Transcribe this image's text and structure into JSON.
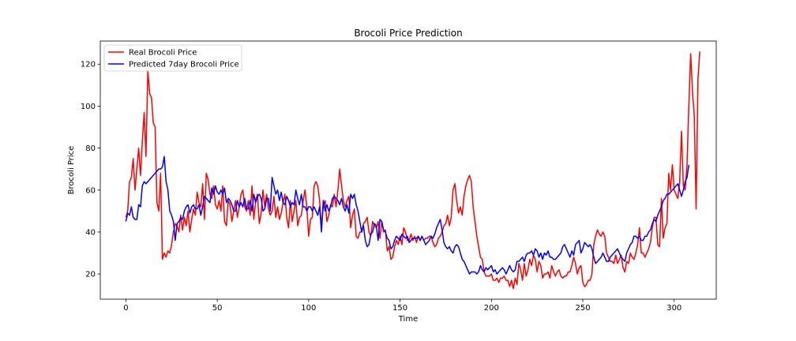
{
  "chart_data": {
    "type": "line",
    "title": "Brocoli Price Prediction",
    "xlabel": "Time",
    "ylabel": "Brocoli Price",
    "xlim": [
      -14,
      323
    ],
    "ylim": [
      8,
      131
    ],
    "x_ticks": [
      0,
      50,
      100,
      150,
      200,
      250,
      300
    ],
    "y_ticks": [
      20,
      40,
      60,
      80,
      100,
      120
    ],
    "grid": false,
    "legend_position": "upper-left",
    "series": [
      {
        "name": "Real Brocoli Price",
        "color": "#ff0000",
        "values": [
          47,
          50,
          64,
          66,
          75,
          60,
          70,
          80,
          67,
          83,
          97,
          76,
          117,
          106,
          104,
          92,
          90,
          54,
          50,
          68,
          27,
          30,
          28,
          31,
          30,
          34,
          40,
          44,
          43,
          40,
          48,
          41,
          47,
          43,
          50,
          40,
          46,
          51,
          48,
          59,
          54,
          52,
          63,
          46,
          68,
          65,
          58,
          56,
          62,
          53,
          51,
          55,
          50,
          62,
          45,
          43,
          55,
          53,
          45,
          50,
          55,
          47,
          52,
          58,
          60,
          52,
          50,
          55,
          48,
          62,
          46,
          55,
          58,
          44,
          49,
          60,
          52,
          58,
          51,
          48,
          50,
          57,
          47,
          52,
          46,
          49,
          54,
          58,
          47,
          42,
          55,
          45,
          50,
          55,
          43,
          47,
          48,
          55,
          60,
          52,
          38,
          46,
          47,
          62,
          64,
          62,
          55,
          42,
          52,
          55,
          45,
          48,
          53,
          52,
          58,
          52,
          60,
          70,
          62,
          55,
          52,
          55,
          57,
          42,
          48,
          51,
          38,
          37,
          40,
          40,
          44,
          45,
          47,
          40,
          38,
          45,
          43,
          42,
          45,
          37,
          45,
          40,
          41,
          31,
          33,
          27,
          28,
          33,
          36,
          34,
          38,
          34,
          42,
          40,
          36,
          36,
          39,
          36,
          38,
          35,
          38,
          36,
          38,
          36,
          37,
          37,
          38,
          38,
          35,
          33,
          34,
          37,
          38,
          40,
          43,
          44,
          48,
          43,
          47,
          60,
          63,
          55,
          49,
          52,
          48,
          57,
          62,
          65,
          67,
          64,
          52,
          45,
          38,
          33,
          28,
          27,
          21,
          19,
          19,
          19,
          20,
          17,
          17,
          18,
          16,
          18,
          18,
          19,
          17,
          17,
          14,
          17,
          13,
          18,
          15,
          25,
          22,
          17,
          25,
          19,
          22,
          27,
          24,
          29,
          27,
          21,
          26,
          24,
          18,
          20,
          20,
          21,
          18,
          24,
          21,
          19,
          21,
          22,
          19,
          18,
          19,
          19,
          21,
          21,
          24,
          28,
          25,
          20,
          23,
          24,
          16,
          14,
          15,
          17,
          17,
          20,
          34,
          38,
          41,
          39,
          38,
          40,
          38,
          30,
          28,
          26,
          26,
          25,
          29,
          25,
          27,
          29,
          23,
          21,
          26,
          25,
          30,
          28,
          27,
          30,
          34,
          42,
          30,
          30,
          28,
          30,
          32,
          35,
          42,
          47,
          47,
          34,
          33,
          56,
          37,
          42,
          44,
          68,
          60,
          72,
          60,
          58,
          56,
          64,
          88,
          62,
          60,
          72,
          100,
          125,
          107,
          95,
          51,
          113,
          126
        ]
      },
      {
        "name": "Predicted 7day Brocoli Price",
        "color": "#0000ff",
        "values": [
          45,
          49,
          48,
          52,
          47,
          46,
          46,
          53,
          52,
          62,
          64,
          63,
          64,
          65,
          66,
          67,
          68,
          69,
          70,
          70,
          71,
          76,
          64,
          60,
          50,
          48,
          45,
          36,
          44,
          45,
          47,
          46,
          50,
          52,
          53,
          49,
          52,
          53,
          51,
          51,
          53,
          48,
          52,
          57,
          56,
          55,
          54,
          61,
          58,
          62,
          59,
          58,
          60,
          58,
          61,
          54,
          56,
          55,
          53,
          50,
          50,
          55,
          52,
          54,
          52,
          56,
          51,
          51,
          55,
          50,
          58,
          54,
          57,
          58,
          56,
          50,
          51,
          56,
          56,
          50,
          66,
          62,
          58,
          60,
          55,
          59,
          54,
          53,
          57,
          55,
          52,
          54,
          53,
          60,
          56,
          53,
          58,
          52,
          52,
          50,
          52,
          52,
          50,
          52,
          50,
          48,
          52,
          40,
          55,
          50,
          53,
          50,
          52,
          56,
          57,
          56,
          55,
          53,
          56,
          52,
          50,
          53,
          49,
          58,
          56,
          58,
          53,
          50,
          45,
          40,
          43,
          36,
          33,
          34,
          39,
          40,
          44,
          43,
          36,
          46,
          45,
          41,
          40,
          37,
          36,
          32,
          33,
          36,
          38,
          37,
          36,
          39,
          38,
          37,
          38,
          35,
          36,
          37,
          37,
          37,
          38,
          36,
          38,
          36,
          34,
          35,
          36,
          38,
          37,
          39,
          42,
          44,
          46,
          41,
          35,
          33,
          32,
          33,
          31,
          30,
          33,
          34,
          33,
          30,
          27,
          26,
          24,
          22,
          20,
          21,
          21,
          21,
          20,
          21,
          24,
          22,
          21,
          23,
          22,
          23,
          24,
          21,
          22,
          20,
          21,
          22,
          23,
          22,
          20,
          22,
          24,
          22,
          21,
          22,
          26,
          26,
          27,
          28,
          26,
          29,
          30,
          30,
          31,
          29,
          32,
          31,
          28,
          30,
          27,
          30,
          29,
          31,
          28,
          28,
          27,
          27,
          28,
          29,
          30,
          33,
          34,
          32,
          30,
          28,
          31,
          29,
          34,
          35,
          36,
          30,
          32,
          35,
          34,
          33,
          34,
          32,
          28,
          25,
          26,
          27,
          28,
          30,
          28,
          26,
          26,
          28,
          29,
          30,
          31,
          32,
          30,
          28,
          27,
          26,
          30,
          32,
          34,
          35,
          38,
          38,
          37,
          38,
          36,
          36,
          38,
          38,
          40,
          41,
          44,
          46,
          45,
          48,
          50,
          52,
          55,
          56,
          58,
          58,
          59,
          60,
          61,
          62,
          63,
          60,
          57,
          60,
          64,
          66,
          72
        ]
      }
    ]
  }
}
